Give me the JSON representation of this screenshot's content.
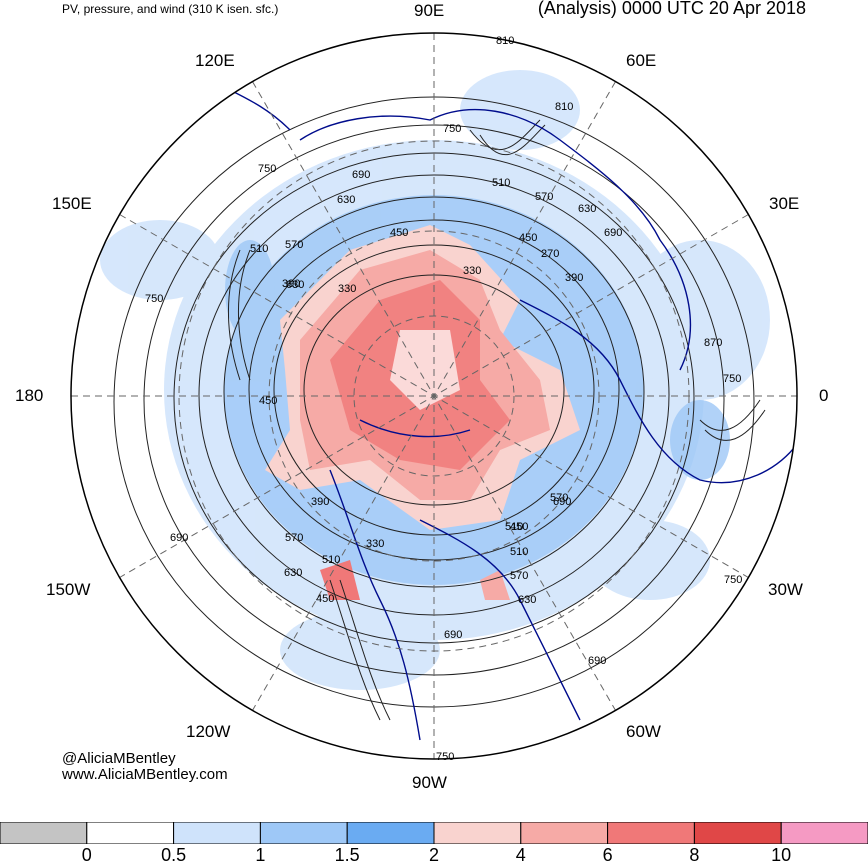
{
  "header": {
    "subtitle": "PV, pressure, and wind (310 K isen. sfc.)",
    "title": "(Analysis) 0000 UTC 20 Apr 2018"
  },
  "longitude_labels": [
    "90E",
    "60E",
    "30E",
    "0",
    "30W",
    "60W",
    "90W",
    "120W",
    "150W",
    "180",
    "150E",
    "120E"
  ],
  "contour_labels": [
    "810",
    "810",
    "750",
    "750",
    "690",
    "630",
    "570",
    "510",
    "450",
    "390",
    "330",
    "270",
    "870",
    "750",
    "690",
    "630",
    "570",
    "510",
    "450",
    "390",
    "330",
    "450",
    "390",
    "690",
    "570",
    "630",
    "510",
    "450",
    "330",
    "630",
    "570",
    "510",
    "690",
    "750",
    "690",
    "750",
    "690",
    "750",
    "630",
    "570",
    "510",
    "450"
  ],
  "credits": {
    "handle": "@AliciaMBentley",
    "url": "www.AliciaMBentley.com"
  },
  "colorbar": {
    "ticks": [
      "0",
      "0.5",
      "1",
      "1.5",
      "2",
      "4",
      "6",
      "8",
      "10"
    ],
    "colors": [
      "#c4c4c4",
      "#ffffff",
      "#cfe3fb",
      "#9ec8f7",
      "#6aabf2",
      "#f9d3cf",
      "#f6aaa6",
      "#f07878",
      "#e04747",
      "#f59ac3"
    ]
  },
  "colors": {
    "coast": "#000c8c",
    "contour": "#222222",
    "grid": "#666666"
  }
}
